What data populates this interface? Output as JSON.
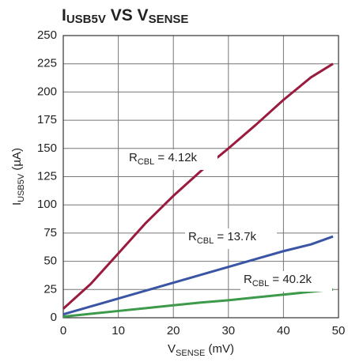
{
  "chart_data": {
    "type": "line",
    "title": [
      {
        "text": "I"
      },
      {
        "text": "USB5V",
        "sub": true
      },
      {
        "text": " VS V"
      },
      {
        "text": "SENSE",
        "sub": true
      }
    ],
    "x_label": [
      {
        "text": "V"
      },
      {
        "text": "SENSE",
        "sub": true
      },
      {
        "text": " (mV)"
      }
    ],
    "y_label": [
      {
        "text": "I"
      },
      {
        "text": "USB5V",
        "sub": true
      },
      {
        "text": " (µA)"
      }
    ],
    "x": [
      0,
      5,
      10,
      15,
      20,
      25,
      30,
      35,
      40,
      45,
      49
    ],
    "series": [
      {
        "color": "#9b1b3f",
        "values": [
          8,
          30,
          57,
          84,
          108,
          130,
          150,
          171,
          193,
          213,
          225
        ]
      },
      {
        "color": "#3a55a4",
        "values": [
          3,
          10,
          17,
          24,
          31,
          38,
          45,
          52,
          59,
          65,
          72
        ]
      },
      {
        "color": "#3d9a4a",
        "values": [
          1,
          3.5,
          6,
          8.5,
          11,
          13.5,
          15.5,
          18,
          20.5,
          23,
          25
        ]
      }
    ],
    "annotations": [
      [
        {
          "text": "R"
        },
        {
          "text": "CBL",
          "sub": true
        },
        {
          "text": " = 4.12k"
        }
      ],
      [
        {
          "text": "R"
        },
        {
          "text": "CBL",
          "sub": true
        },
        {
          "text": " = 13.7k"
        }
      ],
      [
        {
          "text": "R"
        },
        {
          "text": "CBL",
          "sub": true
        },
        {
          "text": " = 40.2k"
        }
      ]
    ],
    "xlim": [
      0,
      50
    ],
    "xticks": [
      0,
      10,
      20,
      30,
      40,
      50
    ],
    "ylim": [
      0,
      250
    ],
    "yticks": [
      0,
      25,
      50,
      75,
      100,
      125,
      150,
      175,
      200,
      225,
      250
    ],
    "grid": true
  }
}
